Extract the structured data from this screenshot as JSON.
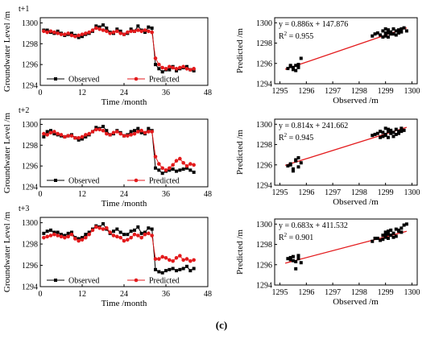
{
  "figure_label": "(c)",
  "colors": {
    "observed": "#000000",
    "predicted": "#e31a1c",
    "fit_line": "#e31a1c"
  },
  "chart_data": [
    {
      "type": "line",
      "panel": "t+1",
      "xlabel": "Time /month",
      "ylabel": "Groundwater Level /m",
      "xlim": [
        0,
        48
      ],
      "ylim": [
        1294,
        1300.5
      ],
      "xticks": [
        0,
        12,
        24,
        36,
        48
      ],
      "yticks": [
        1294,
        1296,
        1298,
        1300
      ],
      "legend": "bottom-left",
      "series": [
        {
          "name": "Observed",
          "marker": "square",
          "color": "#000000",
          "x": [
            1,
            2,
            3,
            4,
            5,
            6,
            7,
            8,
            9,
            10,
            11,
            12,
            13,
            14,
            15,
            16,
            17,
            18,
            19,
            20,
            21,
            22,
            23,
            24,
            25,
            26,
            27,
            28,
            29,
            30,
            31,
            32,
            33,
            34,
            35,
            36,
            37,
            38,
            39,
            40,
            41,
            42,
            43,
            44
          ],
          "y": [
            1299.3,
            1299.3,
            1299.1,
            1299.0,
            1299.2,
            1299.0,
            1298.8,
            1298.9,
            1299.0,
            1298.8,
            1298.6,
            1298.7,
            1298.9,
            1299.0,
            1299.2,
            1299.7,
            1299.6,
            1299.8,
            1299.5,
            1299.1,
            1299.0,
            1299.4,
            1299.2,
            1298.9,
            1299.0,
            1299.4,
            1299.2,
            1299.7,
            1299.3,
            1299.1,
            1299.6,
            1299.5,
            1296.0,
            1295.6,
            1295.3,
            1295.5,
            1295.5,
            1295.8,
            1295.4,
            1295.6,
            1295.7,
            1295.8,
            1295.5,
            1295.4
          ]
        },
        {
          "name": "Predicted",
          "marker": "circle",
          "color": "#e31a1c",
          "x": [
            1,
            2,
            3,
            4,
            5,
            6,
            7,
            8,
            9,
            10,
            11,
            12,
            13,
            14,
            15,
            16,
            17,
            18,
            19,
            20,
            21,
            22,
            23,
            24,
            25,
            26,
            27,
            28,
            29,
            30,
            31,
            32,
            33,
            34,
            35,
            36,
            37,
            38,
            39,
            40,
            41,
            42,
            43,
            44
          ],
          "y": [
            1299.2,
            1299.1,
            1299.2,
            1299.1,
            1299.0,
            1298.9,
            1298.9,
            1299.0,
            1298.8,
            1298.7,
            1298.8,
            1298.9,
            1299.0,
            1299.1,
            1299.3,
            1299.5,
            1299.4,
            1299.3,
            1299.2,
            1299.0,
            1299.1,
            1299.2,
            1299.0,
            1298.9,
            1299.1,
            1299.2,
            1299.2,
            1299.3,
            1299.2,
            1299.3,
            1299.2,
            1299.1,
            1296.6,
            1296.0,
            1295.7,
            1295.6,
            1295.8,
            1295.7,
            1295.6,
            1295.7,
            1295.8,
            1295.6,
            1295.5,
            1295.6
          ]
        }
      ]
    },
    {
      "type": "line",
      "panel": "t+2",
      "xlabel": "Time /month",
      "ylabel": "Groundwater Level /m",
      "xlim": [
        0,
        48
      ],
      "ylim": [
        1294,
        1300.5
      ],
      "xticks": [
        0,
        12,
        24,
        36,
        48
      ],
      "yticks": [
        1294,
        1296,
        1298,
        1300
      ],
      "legend": "bottom-left",
      "series": [
        {
          "name": "Observed",
          "marker": "square",
          "color": "#000000",
          "x": [
            1,
            2,
            3,
            4,
            5,
            6,
            7,
            8,
            9,
            10,
            11,
            12,
            13,
            14,
            15,
            16,
            17,
            18,
            19,
            20,
            21,
            22,
            23,
            24,
            25,
            26,
            27,
            28,
            29,
            30,
            31,
            32,
            33,
            34,
            35,
            36,
            37,
            38,
            39,
            40,
            41,
            42,
            43,
            44
          ],
          "y": [
            1298.8,
            1299.3,
            1299.4,
            1299.1,
            1299.0,
            1298.9,
            1298.8,
            1298.9,
            1299.0,
            1298.7,
            1298.5,
            1298.6,
            1298.8,
            1299.0,
            1299.3,
            1299.7,
            1299.6,
            1299.8,
            1299.4,
            1299.0,
            1299.1,
            1299.4,
            1299.2,
            1298.9,
            1299.0,
            1299.3,
            1299.4,
            1299.6,
            1299.2,
            1299.1,
            1299.6,
            1299.4,
            1295.8,
            1295.6,
            1295.3,
            1295.5,
            1295.6,
            1295.7,
            1295.5,
            1295.6,
            1295.7,
            1295.8,
            1295.6,
            1295.4
          ]
        },
        {
          "name": "Predicted",
          "marker": "circle",
          "color": "#e31a1c",
          "x": [
            1,
            2,
            3,
            4,
            5,
            6,
            7,
            8,
            9,
            10,
            11,
            12,
            13,
            14,
            15,
            16,
            17,
            18,
            19,
            20,
            21,
            22,
            23,
            24,
            25,
            26,
            27,
            28,
            29,
            30,
            31,
            32,
            33,
            34,
            35,
            36,
            37,
            38,
            39,
            40,
            41,
            42,
            43,
            44
          ],
          "y": [
            1299.1,
            1299.0,
            1299.2,
            1299.3,
            1299.1,
            1299.0,
            1298.8,
            1298.9,
            1298.9,
            1298.7,
            1298.7,
            1298.8,
            1299.0,
            1299.1,
            1299.3,
            1299.5,
            1299.5,
            1299.4,
            1299.1,
            1299.0,
            1299.2,
            1299.3,
            1299.1,
            1298.9,
            1298.9,
            1299.0,
            1299.1,
            1299.3,
            1299.4,
            1299.2,
            1299.3,
            1299.3,
            1296.9,
            1296.2,
            1295.8,
            1295.6,
            1295.8,
            1296.1,
            1296.5,
            1296.7,
            1296.3,
            1296.0,
            1296.2,
            1296.1
          ]
        }
      ]
    },
    {
      "type": "line",
      "panel": "t+3",
      "xlabel": "Time /month",
      "ylabel": "Groundwater Level /m",
      "xlim": [
        0,
        48
      ],
      "ylim": [
        1294,
        1300.5
      ],
      "xticks": [
        0,
        12,
        24,
        36,
        48
      ],
      "yticks": [
        1294,
        1296,
        1298,
        1300
      ],
      "legend": "bottom-left",
      "series": [
        {
          "name": "Observed",
          "marker": "square",
          "color": "#000000",
          "x": [
            1,
            2,
            3,
            4,
            5,
            6,
            7,
            8,
            9,
            10,
            11,
            12,
            13,
            14,
            15,
            16,
            17,
            18,
            19,
            20,
            21,
            22,
            23,
            24,
            25,
            26,
            27,
            28,
            29,
            30,
            31,
            32,
            33,
            34,
            35,
            36,
            37,
            38,
            39,
            40,
            41,
            42,
            43,
            44
          ],
          "y": [
            1299.0,
            1299.2,
            1299.3,
            1299.1,
            1299.1,
            1298.9,
            1298.8,
            1299.0,
            1299.1,
            1298.6,
            1298.5,
            1298.6,
            1298.9,
            1299.1,
            1299.4,
            1299.7,
            1299.6,
            1299.9,
            1299.4,
            1299.0,
            1299.2,
            1299.4,
            1299.1,
            1298.9,
            1298.9,
            1299.2,
            1299.3,
            1299.6,
            1299.0,
            1299.1,
            1299.5,
            1299.4,
            1295.6,
            1295.4,
            1295.3,
            1295.5,
            1295.6,
            1295.7,
            1295.5,
            1295.6,
            1295.7,
            1295.9,
            1295.5,
            1295.7
          ]
        },
        {
          "name": "Predicted",
          "marker": "circle",
          "color": "#e31a1c",
          "x": [
            1,
            2,
            3,
            4,
            5,
            6,
            7,
            8,
            9,
            10,
            11,
            12,
            13,
            14,
            15,
            16,
            17,
            18,
            19,
            20,
            21,
            22,
            23,
            24,
            25,
            26,
            27,
            28,
            29,
            30,
            31,
            32,
            33,
            34,
            35,
            36,
            37,
            38,
            39,
            40,
            41,
            42,
            43,
            44
          ],
          "y": [
            1298.6,
            1298.7,
            1298.8,
            1298.9,
            1298.8,
            1298.7,
            1298.6,
            1298.7,
            1298.9,
            1298.5,
            1298.3,
            1298.4,
            1298.6,
            1298.9,
            1299.3,
            1299.6,
            1299.5,
            1299.4,
            1299.5,
            1299.1,
            1298.8,
            1298.7,
            1298.6,
            1298.3,
            1298.4,
            1298.6,
            1298.9,
            1298.8,
            1298.6,
            1298.9,
            1299.0,
            1298.8,
            1296.6,
            1296.6,
            1296.8,
            1296.7,
            1296.5,
            1296.4,
            1296.7,
            1296.9,
            1296.5,
            1296.6,
            1296.4,
            1296.5
          ]
        }
      ]
    },
    {
      "type": "scatter",
      "panel": "t+1",
      "xlabel": "Observed /m",
      "ylabel": "Predicted /m",
      "xlim": [
        1294.8,
        1300.2
      ],
      "ylim": [
        1294,
        1300.5
      ],
      "xticks": [
        1295,
        1296,
        1297,
        1298,
        1299,
        1300
      ],
      "yticks": [
        1294,
        1296,
        1298,
        1300
      ],
      "equation": "y = 0.886x + 147.876",
      "r2": "0.955",
      "fit": {
        "slope": 0.886,
        "intercept": 147.876,
        "xrange": [
          1295.2,
          1299.8
        ]
      },
      "points": [
        [
          1295.3,
          1295.5
        ],
        [
          1295.4,
          1295.7
        ],
        [
          1295.5,
          1295.6
        ],
        [
          1295.6,
          1295.8
        ],
        [
          1295.7,
          1295.9
        ],
        [
          1295.5,
          1295.4
        ],
        [
          1295.8,
          1296.5
        ],
        [
          1295.6,
          1295.3
        ],
        [
          1295.4,
          1295.8
        ],
        [
          1295.7,
          1295.6
        ],
        [
          1298.5,
          1298.7
        ],
        [
          1298.7,
          1299.0
        ],
        [
          1298.8,
          1298.8
        ],
        [
          1298.9,
          1299.2
        ],
        [
          1299.0,
          1298.7
        ],
        [
          1299.0,
          1299.0
        ],
        [
          1299.1,
          1299.3
        ],
        [
          1299.1,
          1298.6
        ],
        [
          1299.2,
          1299.1
        ],
        [
          1299.2,
          1298.9
        ],
        [
          1299.3,
          1299.4
        ],
        [
          1299.4,
          1299.2
        ],
        [
          1299.4,
          1298.8
        ],
        [
          1299.5,
          1299.3
        ],
        [
          1299.6,
          1299.4
        ],
        [
          1299.7,
          1299.5
        ],
        [
          1299.8,
          1299.2
        ],
        [
          1298.9,
          1298.6
        ],
        [
          1299.0,
          1299.4
        ],
        [
          1299.5,
          1299.0
        ],
        [
          1299.3,
          1298.9
        ],
        [
          1298.6,
          1298.9
        ],
        [
          1299.6,
          1299.1
        ],
        [
          1299.1,
          1299.0
        ]
      ]
    },
    {
      "type": "scatter",
      "panel": "t+2",
      "xlabel": "Observed /m",
      "ylabel": "Predicted /m",
      "xlim": [
        1294.8,
        1300.2
      ],
      "ylim": [
        1294,
        1300.5
      ],
      "xticks": [
        1295,
        1296,
        1297,
        1298,
        1299,
        1300
      ],
      "yticks": [
        1294,
        1296,
        1298,
        1300
      ],
      "equation": "y = 0.814x + 241.662",
      "r2": "0.945",
      "fit": {
        "slope": 0.814,
        "intercept": 241.662,
        "xrange": [
          1295.2,
          1299.8
        ]
      },
      "points": [
        [
          1295.3,
          1295.9
        ],
        [
          1295.4,
          1296.1
        ],
        [
          1295.5,
          1295.6
        ],
        [
          1295.6,
          1296.5
        ],
        [
          1295.7,
          1296.7
        ],
        [
          1295.5,
          1295.4
        ],
        [
          1295.8,
          1296.2
        ],
        [
          1295.6,
          1296.4
        ],
        [
          1295.4,
          1296.0
        ],
        [
          1295.7,
          1295.8
        ],
        [
          1298.5,
          1298.9
        ],
        [
          1298.7,
          1299.1
        ],
        [
          1298.8,
          1299.3
        ],
        [
          1298.9,
          1298.8
        ],
        [
          1299.0,
          1299.6
        ],
        [
          1299.0,
          1299.0
        ],
        [
          1299.1,
          1299.3
        ],
        [
          1299.1,
          1298.7
        ],
        [
          1299.2,
          1299.1
        ],
        [
          1299.2,
          1299.4
        ],
        [
          1299.3,
          1299.2
        ],
        [
          1299.4,
          1299.5
        ],
        [
          1299.4,
          1299.0
        ],
        [
          1299.5,
          1299.3
        ],
        [
          1299.6,
          1299.6
        ],
        [
          1299.7,
          1299.4
        ],
        [
          1298.9,
          1299.2
        ],
        [
          1299.0,
          1298.9
        ],
        [
          1299.5,
          1299.1
        ],
        [
          1299.3,
          1298.8
        ],
        [
          1298.6,
          1299.0
        ],
        [
          1299.6,
          1299.3
        ],
        [
          1299.1,
          1299.5
        ],
        [
          1298.8,
          1298.7
        ]
      ]
    },
    {
      "type": "scatter",
      "panel": "t+3",
      "xlabel": "Observed /m",
      "ylabel": "Predicted /m",
      "xlim": [
        1294.8,
        1300.2
      ],
      "ylim": [
        1294,
        1300.5
      ],
      "xticks": [
        1295,
        1296,
        1297,
        1298,
        1299,
        1300
      ],
      "yticks": [
        1294,
        1296,
        1298,
        1300
      ],
      "equation": "y = 0.683x + 411.532",
      "r2": "0.901",
      "fit": {
        "slope": 0.683,
        "intercept": 411.532,
        "xrange": [
          1295.2,
          1299.8
        ]
      },
      "points": [
        [
          1295.3,
          1296.6
        ],
        [
          1295.4,
          1296.5
        ],
        [
          1295.5,
          1296.8
        ],
        [
          1295.6,
          1296.3
        ],
        [
          1295.7,
          1296.6
        ],
        [
          1295.5,
          1296.4
        ],
        [
          1295.8,
          1296.2
        ],
        [
          1295.6,
          1295.6
        ],
        [
          1295.4,
          1296.7
        ],
        [
          1295.7,
          1296.9
        ],
        [
          1298.5,
          1298.3
        ],
        [
          1298.7,
          1298.6
        ],
        [
          1298.8,
          1298.4
        ],
        [
          1298.9,
          1298.9
        ],
        [
          1299.0,
          1299.2
        ],
        [
          1299.0,
          1298.7
        ],
        [
          1299.1,
          1298.6
        ],
        [
          1299.1,
          1299.0
        ],
        [
          1299.2,
          1298.9
        ],
        [
          1299.2,
          1299.4
        ],
        [
          1299.3,
          1299.1
        ],
        [
          1299.4,
          1299.5
        ],
        [
          1299.4,
          1298.8
        ],
        [
          1299.5,
          1299.3
        ],
        [
          1299.6,
          1299.6
        ],
        [
          1299.7,
          1299.9
        ],
        [
          1299.8,
          1300.0
        ],
        [
          1298.9,
          1298.5
        ],
        [
          1299.0,
          1299.0
        ],
        [
          1299.5,
          1299.4
        ],
        [
          1299.3,
          1298.7
        ],
        [
          1298.6,
          1298.6
        ],
        [
          1299.6,
          1299.2
        ],
        [
          1299.1,
          1299.3
        ]
      ]
    }
  ]
}
